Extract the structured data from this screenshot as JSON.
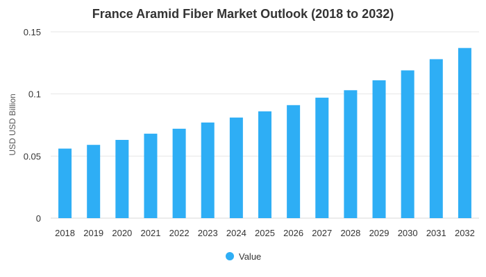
{
  "chart_data": {
    "type": "bar",
    "title": "France Aramid Fiber Market Outlook (2018 to 2032)",
    "xlabel": "",
    "ylabel": "USD USD Billion",
    "categories": [
      "2018",
      "2019",
      "2020",
      "2021",
      "2022",
      "2023",
      "2024",
      "2025",
      "2026",
      "2027",
      "2028",
      "2029",
      "2030",
      "2031",
      "2032"
    ],
    "series": [
      {
        "name": "Value",
        "values": [
          0.056,
          0.059,
          0.063,
          0.068,
          0.072,
          0.077,
          0.081,
          0.086,
          0.091,
          0.097,
          0.103,
          0.111,
          0.119,
          0.128,
          0.137
        ]
      }
    ],
    "ylim": [
      0,
      0.15
    ],
    "yticks": [
      0,
      0.05,
      0.1,
      0.15
    ],
    "ytick_labels": [
      "0",
      "0.05",
      "0.1",
      "0.15"
    ],
    "grid": true,
    "legend_position": "bottom-center",
    "bar_color": "#2eaef5"
  }
}
